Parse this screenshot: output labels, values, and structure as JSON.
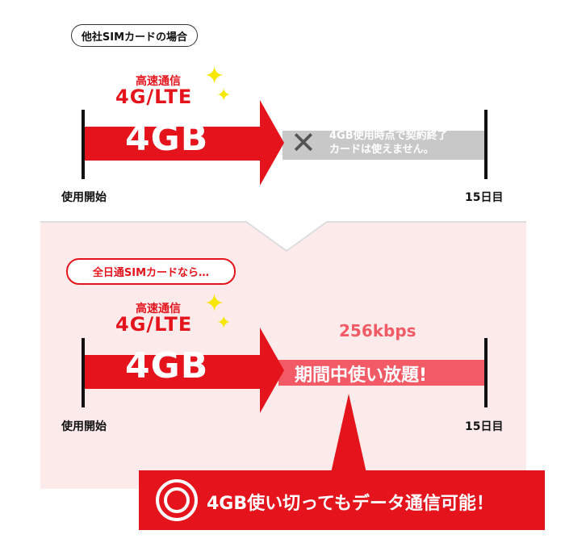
{
  "top": {
    "badge": "他社SIMカードの場合",
    "speed_label": "高速通信",
    "network": "4G/LTE",
    "data_amount": "4GB",
    "blocked_text_line1": "4GB使用時点で契約終了",
    "blocked_text_line2": "カードは使えません。",
    "start_label": "使用開始",
    "end_label": "15日目"
  },
  "bottom": {
    "badge": "全日通SIMカードなら…",
    "speed_label": "高速通信",
    "network": "4G/LTE",
    "data_amount": "4GB",
    "throttled_speed": "256kbps",
    "unlimited_text": "期間中使い放題!",
    "start_label": "使用開始",
    "end_label": "15日目"
  },
  "callout": {
    "text": "4GB使い切ってもデータ通信可能！",
    "icon": "double-circle-icon"
  },
  "colors": {
    "red": "#e5141c",
    "pink_bar": "#f25b66",
    "panel": "#fdebec",
    "gray": "#c8c8c8"
  }
}
